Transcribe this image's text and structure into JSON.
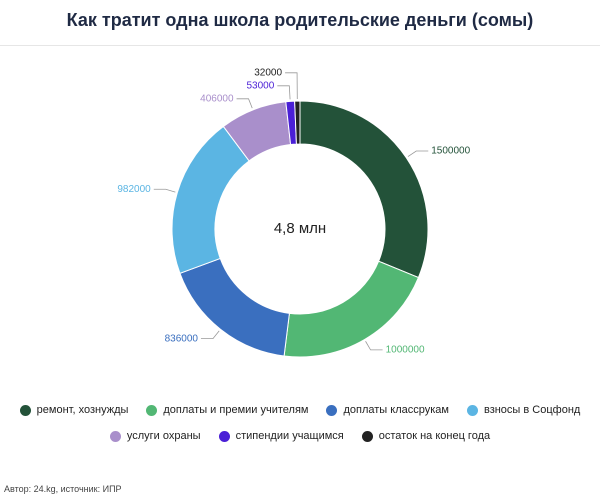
{
  "chart_data": {
    "type": "donut",
    "title": "Как тратит одна школа родительские деньги  (сомы)",
    "center_label": "4,8 млн",
    "categories": [
      "ремонт, хознужды",
      "доплаты и премии учителям",
      "доплаты классрукам",
      "взносы в Соцфонд",
      "услуги охраны",
      "стипендии учащимся",
      "остаток на конец года"
    ],
    "values": [
      1500000,
      1000000,
      836000,
      982000,
      406000,
      53000,
      32000
    ],
    "colors": [
      "#235239",
      "#52b774",
      "#3a6fbf",
      "#5bb5e3",
      "#a98fcb",
      "#4a1fd6",
      "#222222"
    ],
    "source": "Автор: 24.kg, источник: ИПР"
  }
}
